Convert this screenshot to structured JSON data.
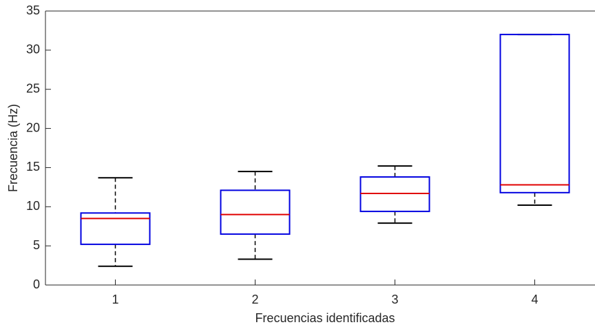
{
  "chart_data": {
    "type": "box",
    "xlabel": "Frecuencias identificadas",
    "ylabel": "Frecuencia (Hz)",
    "categories": [
      "1",
      "2",
      "3",
      "4"
    ],
    "min": [
      2.4,
      3.3,
      7.9,
      10.2
    ],
    "q1": [
      5.2,
      6.5,
      9.4,
      11.8
    ],
    "median": [
      8.5,
      9.0,
      11.7,
      12.8
    ],
    "q3": [
      9.2,
      12.1,
      13.8,
      32.0
    ],
    "max": [
      13.7,
      14.5,
      15.2,
      32.0
    ],
    "box_color": "#0000e0",
    "median_color": "#e00000",
    "whisker_color": "#000000",
    "ylim": [
      0,
      35
    ],
    "yticks": [
      0,
      5,
      10,
      15,
      20,
      25,
      30,
      35
    ],
    "grid": false
  }
}
